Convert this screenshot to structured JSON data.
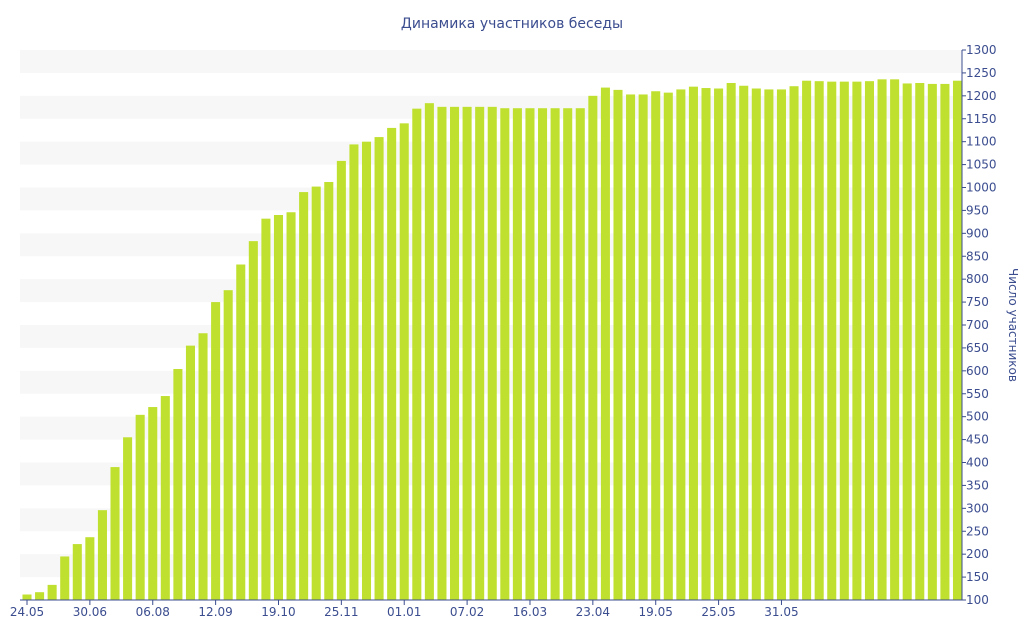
{
  "chart_data": {
    "type": "bar",
    "title": "Динамика участников беседы",
    "xlabel": "",
    "ylabel": "Число участников",
    "ylim": [
      100,
      1300
    ],
    "yticks": [
      100,
      150,
      200,
      250,
      300,
      350,
      400,
      450,
      500,
      550,
      600,
      650,
      700,
      750,
      800,
      850,
      900,
      950,
      1000,
      1050,
      1100,
      1150,
      1200,
      1250,
      1300
    ],
    "y_axis_position": "right",
    "grid": "alternating horizontal bands",
    "legend": "none",
    "x_tick_labels": [
      {
        "index": 0,
        "label": "24.05"
      },
      {
        "index": 5,
        "label": "30.06"
      },
      {
        "index": 10,
        "label": "06.08"
      },
      {
        "index": 15,
        "label": "12.09"
      },
      {
        "index": 20,
        "label": "19.10"
      },
      {
        "index": 25,
        "label": "25.11"
      },
      {
        "index": 30,
        "label": "01.01"
      },
      {
        "index": 35,
        "label": "07.02"
      },
      {
        "index": 40,
        "label": "16.03"
      },
      {
        "index": 45,
        "label": "23.04"
      },
      {
        "index": 50,
        "label": "19.05"
      },
      {
        "index": 55,
        "label": "25.05"
      },
      {
        "index": 60,
        "label": "31.05"
      }
    ],
    "values": [
      112,
      117,
      133,
      195,
      222,
      237,
      296,
      390,
      455,
      504,
      521,
      545,
      604,
      655,
      682,
      750,
      776,
      832,
      883,
      932,
      940,
      946,
      990,
      1002,
      1012,
      1058,
      1094,
      1100,
      1110,
      1130,
      1140,
      1172,
      1184,
      1176,
      1176,
      1176,
      1176,
      1176,
      1173,
      1173,
      1173,
      1173,
      1173,
      1173,
      1173,
      1200,
      1218,
      1213,
      1203,
      1203,
      1210,
      1207,
      1214,
      1220,
      1217,
      1216,
      1228,
      1222,
      1216,
      1214,
      1214,
      1221,
      1233,
      1232,
      1231,
      1231,
      1231,
      1232,
      1236,
      1236,
      1227,
      1228,
      1226,
      1226,
      1233
    ],
    "bar_color": "#bfe02f",
    "band_color": "#f7f7f7",
    "text_color": "#3b4d8f",
    "axis_color": "#3b4d8f"
  }
}
